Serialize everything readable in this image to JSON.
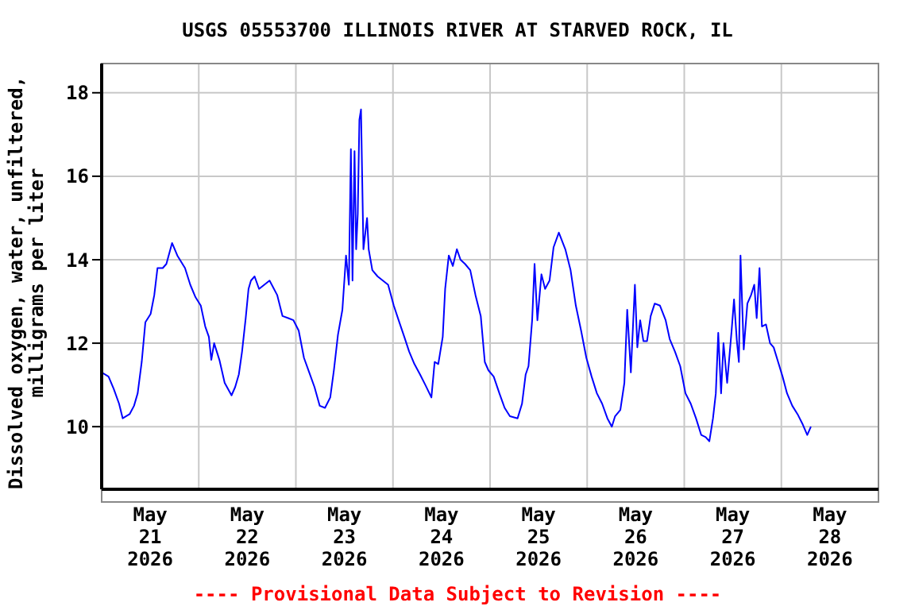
{
  "chart_data": {
    "type": "line",
    "title": "USGS 05553700 ILLINOIS RIVER AT STARVED ROCK, IL",
    "ylabel": "Dissolved oxygen, water, unfiltered,\nmilligrams per liter",
    "annotations": [
      "---- Provisional Data Subject to Revision ----"
    ],
    "x": [
      "2026-05-21T00:00",
      "2026-05-21T01:42",
      "2026-05-21T03:00",
      "2026-05-21T04:18",
      "2026-05-21T05:12",
      "2026-05-21T06:54",
      "2026-05-21T08:00",
      "2026-05-21T08:54",
      "2026-05-21T09:54",
      "2026-05-21T10:48",
      "2026-05-21T12:06",
      "2026-05-21T13:00",
      "2026-05-21T13:48",
      "2026-05-21T15:06",
      "2026-05-21T16:00",
      "2026-05-21T17:24",
      "2026-05-21T18:42",
      "2026-05-21T20:36",
      "2026-05-21T21:54",
      "2026-05-21T23:12",
      "2026-05-22T00:30",
      "2026-05-22T01:36",
      "2026-05-22T02:30",
      "2026-05-22T03:06",
      "2026-05-22T03:48",
      "2026-05-22T05:06",
      "2026-05-22T06:24",
      "2026-05-22T08:06",
      "2026-05-22T09:00",
      "2026-05-22T09:54",
      "2026-05-22T10:42",
      "2026-05-22T11:36",
      "2026-05-22T12:18",
      "2026-05-22T12:54",
      "2026-05-22T13:48",
      "2026-05-22T14:54",
      "2026-05-22T16:12",
      "2026-05-22T17:30",
      "2026-05-22T19:24",
      "2026-05-22T20:42",
      "2026-05-22T22:06",
      "2026-05-22T23:24",
      "2026-05-23T00:42",
      "2026-05-23T02:00",
      "2026-05-23T03:18",
      "2026-05-23T04:36",
      "2026-05-23T05:54",
      "2026-05-23T07:12",
      "2026-05-23T08:30",
      "2026-05-23T09:24",
      "2026-05-23T10:24",
      "2026-05-23T11:30",
      "2026-05-23T12:24",
      "2026-05-23T13:06",
      "2026-05-23T13:36",
      "2026-05-23T14:00",
      "2026-05-23T14:30",
      "2026-05-23T14:54",
      "2026-05-23T15:18",
      "2026-05-23T15:42",
      "2026-05-23T16:06",
      "2026-05-23T16:42",
      "2026-05-23T17:36",
      "2026-05-23T18:00",
      "2026-05-23T18:54",
      "2026-05-23T20:12",
      "2026-05-23T21:30",
      "2026-05-23T22:48",
      "2026-05-24T00:12",
      "2026-05-24T01:24",
      "2026-05-24T02:48",
      "2026-05-24T04:00",
      "2026-05-24T05:18",
      "2026-05-24T06:42",
      "2026-05-24T08:00",
      "2026-05-24T09:30",
      "2026-05-24T10:18",
      "2026-05-24T11:12",
      "2026-05-24T12:18",
      "2026-05-24T12:54",
      "2026-05-24T13:48",
      "2026-05-24T14:48",
      "2026-05-24T15:48",
      "2026-05-24T16:42",
      "2026-05-24T17:48",
      "2026-05-24T19:06",
      "2026-05-24T20:24",
      "2026-05-24T21:42",
      "2026-05-24T22:42",
      "2026-05-24T23:36",
      "2026-05-25T00:54",
      "2026-05-25T02:18",
      "2026-05-25T03:36",
      "2026-05-25T04:54",
      "2026-05-25T06:48",
      "2026-05-25T07:54",
      "2026-05-25T08:48",
      "2026-05-25T09:30",
      "2026-05-25T10:24",
      "2026-05-25T11:00",
      "2026-05-25T11:42",
      "2026-05-25T12:42",
      "2026-05-25T13:36",
      "2026-05-25T14:42",
      "2026-05-25T15:42",
      "2026-05-25T17:00",
      "2026-05-25T18:36",
      "2026-05-25T19:54",
      "2026-05-25T21:12",
      "2026-05-25T22:30",
      "2026-05-25T23:48",
      "2026-05-26T01:06",
      "2026-05-26T02:24",
      "2026-05-26T03:42",
      "2026-05-26T05:00",
      "2026-05-26T06:06",
      "2026-05-26T06:54",
      "2026-05-26T08:12",
      "2026-05-26T09:12",
      "2026-05-26T09:54",
      "2026-05-26T10:48",
      "2026-05-26T11:48",
      "2026-05-26T12:24",
      "2026-05-26T13:06",
      "2026-05-26T13:54",
      "2026-05-26T14:48",
      "2026-05-26T15:42",
      "2026-05-26T16:42",
      "2026-05-26T18:00",
      "2026-05-26T19:24",
      "2026-05-26T20:24",
      "2026-05-26T21:42",
      "2026-05-26T23:00",
      "2026-05-27T00:18",
      "2026-05-27T01:36",
      "2026-05-27T02:54",
      "2026-05-27T04:12",
      "2026-05-27T05:18",
      "2026-05-27T06:12",
      "2026-05-27T07:06",
      "2026-05-27T07:48",
      "2026-05-27T08:24",
      "2026-05-27T09:06",
      "2026-05-27T09:42",
      "2026-05-27T10:36",
      "2026-05-27T11:42",
      "2026-05-27T12:18",
      "2026-05-27T13:00",
      "2026-05-27T13:30",
      "2026-05-27T13:54",
      "2026-05-27T14:42",
      "2026-05-27T15:36",
      "2026-05-27T16:30",
      "2026-05-27T17:18",
      "2026-05-27T17:54",
      "2026-05-27T18:36",
      "2026-05-27T19:12",
      "2026-05-27T20:12",
      "2026-05-27T21:12",
      "2026-05-27T22:06",
      "2026-05-27T23:12",
      "2026-05-28T00:18",
      "2026-05-28T01:24",
      "2026-05-28T02:42",
      "2026-05-28T04:00",
      "2026-05-28T05:18",
      "2026-05-28T06:24",
      "2026-05-28T07:18"
    ],
    "series": [
      {
        "color": "#0000ff",
        "values": [
          11.3,
          11.2,
          10.9,
          10.55,
          10.2,
          10.3,
          10.5,
          10.8,
          11.55,
          12.5,
          12.7,
          13.15,
          13.8,
          13.8,
          13.9,
          14.4,
          14.1,
          13.8,
          13.4,
          13.1,
          12.9,
          12.4,
          12.15,
          11.6,
          12.0,
          11.6,
          11.05,
          10.75,
          10.95,
          11.25,
          11.8,
          12.6,
          13.3,
          13.5,
          13.6,
          13.3,
          13.4,
          13.5,
          13.15,
          12.65,
          12.6,
          12.55,
          12.3,
          11.65,
          11.3,
          10.95,
          10.5,
          10.45,
          10.7,
          11.35,
          12.2,
          12.8,
          14.1,
          13.4,
          16.65,
          13.5,
          16.6,
          14.25,
          15.1,
          17.35,
          17.6,
          14.25,
          15.0,
          14.25,
          13.75,
          13.6,
          13.5,
          13.4,
          12.9,
          12.55,
          12.15,
          11.8,
          11.5,
          11.25,
          11.0,
          10.7,
          11.55,
          11.5,
          12.15,
          13.3,
          14.1,
          13.85,
          14.25,
          14.0,
          13.9,
          13.75,
          13.15,
          12.65,
          11.55,
          11.35,
          11.2,
          10.8,
          10.45,
          10.25,
          10.2,
          10.55,
          11.25,
          11.45,
          12.55,
          13.9,
          12.55,
          13.65,
          13.3,
          13.5,
          14.3,
          14.65,
          14.25,
          13.75,
          12.9,
          12.3,
          11.65,
          11.2,
          10.8,
          10.55,
          10.2,
          10.0,
          10.25,
          10.4,
          11.05,
          12.8,
          11.3,
          13.4,
          11.9,
          12.55,
          12.05,
          12.05,
          12.65,
          12.95,
          12.9,
          12.55,
          12.1,
          11.8,
          11.45,
          10.8,
          10.55,
          10.2,
          9.8,
          9.75,
          9.65,
          10.2,
          10.8,
          12.25,
          10.8,
          12.0,
          11.05,
          12.3,
          13.05,
          12.05,
          11.55,
          14.1,
          11.85,
          12.95,
          13.15,
          13.4,
          12.6,
          13.8,
          12.4,
          12.45,
          12.0,
          11.9,
          11.55,
          11.2,
          10.8,
          10.5,
          10.3,
          10.05,
          9.8,
          10.0
        ]
      }
    ],
    "xlim": [
      "2026-05-21",
      "2026-05-29"
    ],
    "xticks": [
      {
        "value": "2026-05-21T12:00",
        "label": "May\n21\n2026"
      },
      {
        "value": "2026-05-22",
        "label": null
      },
      {
        "value": "2026-05-22T12:00",
        "label": "May\n22\n2026"
      },
      {
        "value": "2026-05-23",
        "label": null
      },
      {
        "value": "2026-05-23T12:00",
        "label": "May\n23\n2026"
      },
      {
        "value": "2026-05-24",
        "label": null
      },
      {
        "value": "2026-05-24T12:00",
        "label": "May\n24\n2026"
      },
      {
        "value": "2026-05-25",
        "label": null
      },
      {
        "value": "2026-05-25T12:00",
        "label": "May\n25\n2026"
      },
      {
        "value": "2026-05-26",
        "label": null
      },
      {
        "value": "2026-05-26T12:00",
        "label": "May\n26\n2026"
      },
      {
        "value": "2026-05-27",
        "label": null
      },
      {
        "value": "2026-05-27T12:00",
        "label": "May\n27\n2026"
      },
      {
        "value": "2026-05-28",
        "label": null
      },
      {
        "value": "2026-05-28T12:00",
        "label": "May\n28\n2026"
      }
    ],
    "ylim": [
      8.5,
      18.7
    ],
    "yticks": [
      10,
      12,
      14,
      16,
      18
    ],
    "grid": true
  }
}
